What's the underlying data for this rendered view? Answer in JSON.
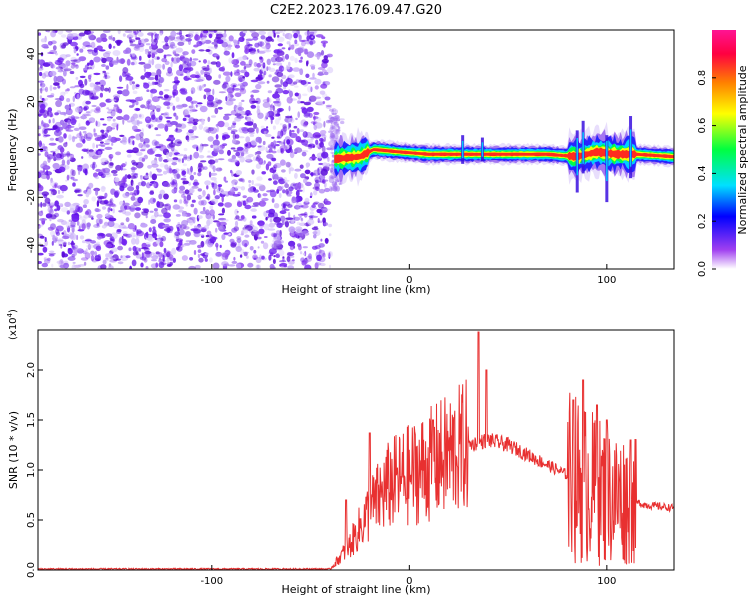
{
  "title": "C2E2.2023.176.09.47.G20",
  "chart_data": [
    {
      "type": "heatmap",
      "xlabel": "Height of straight line (km)",
      "ylabel": "Frequency (Hz)",
      "xlim": [
        -188,
        134
      ],
      "ylim": [
        -50,
        50
      ],
      "xticks": [
        -100,
        0,
        100
      ],
      "yticks": [
        -40,
        -20,
        0,
        20,
        40
      ],
      "grid": false,
      "noise_region_x": [
        -188,
        -40
      ],
      "signal_track": [
        {
          "x": -38,
          "y": -4
        },
        {
          "x": -25,
          "y": -3
        },
        {
          "x": -18,
          "y": 0
        },
        {
          "x": -5,
          "y": -1
        },
        {
          "x": 10,
          "y": -2
        },
        {
          "x": 30,
          "y": -2
        },
        {
          "x": 50,
          "y": -2
        },
        {
          "x": 70,
          "y": -2
        },
        {
          "x": 85,
          "y": -3
        },
        {
          "x": 95,
          "y": -1
        },
        {
          "x": 105,
          "y": -2
        },
        {
          "x": 115,
          "y": -2
        },
        {
          "x": 134,
          "y": -3
        }
      ],
      "colorbar": {
        "label": "Normalized spectral amplitude",
        "range": [
          0,
          1
        ],
        "ticks": [
          "0.0",
          "0.2",
          "0.4",
          "0.6",
          "0.8"
        ],
        "colors": [
          "#ffffff",
          "#a040f0",
          "#0000ff",
          "#00e0ff",
          "#00ff40",
          "#ffff00",
          "#ff8000",
          "#ff0040",
          "#ff1493"
        ]
      }
    },
    {
      "type": "line",
      "xlabel": "Height of straight line (km)",
      "ylabel": "SNR (10 * v/v)",
      "scale_label": "(x10",
      "scale_exp": "4",
      "scale_close": ")",
      "xlim": [
        -188,
        134
      ],
      "ylim": [
        0,
        24000
      ],
      "xticks": [
        -100,
        0,
        100
      ],
      "yticks": [
        "0.0",
        "0.5",
        "1.0",
        "1.5",
        "2.0"
      ],
      "ytick_values": [
        0,
        5000,
        10000,
        15000,
        20000
      ],
      "color": "#e83030",
      "grid": false,
      "envelope": [
        {
          "x": -188,
          "y": 100
        },
        {
          "x": -40,
          "y": 100
        },
        {
          "x": -30,
          "y": 2500
        },
        {
          "x": -20,
          "y": 6000
        },
        {
          "x": -10,
          "y": 8500
        },
        {
          "x": 0,
          "y": 9500
        },
        {
          "x": 10,
          "y": 10500
        },
        {
          "x": 20,
          "y": 11500
        },
        {
          "x": 30,
          "y": 12500
        },
        {
          "x": 40,
          "y": 13000
        },
        {
          "x": 50,
          "y": 12500
        },
        {
          "x": 60,
          "y": 11500
        },
        {
          "x": 70,
          "y": 10500
        },
        {
          "x": 80,
          "y": 9500
        },
        {
          "x": 90,
          "y": 8500
        },
        {
          "x": 100,
          "y": 7500
        },
        {
          "x": 110,
          "y": 7000
        },
        {
          "x": 120,
          "y": 6500
        },
        {
          "x": 134,
          "y": 6200
        }
      ],
      "peaks": [
        {
          "x": -32,
          "y": 7000
        },
        {
          "x": -20,
          "y": 13700
        },
        {
          "x": 12,
          "y": 15000
        },
        {
          "x": 35,
          "y": 23800
        },
        {
          "x": 39,
          "y": 20000
        },
        {
          "x": 83,
          "y": 17000
        },
        {
          "x": 88,
          "y": 19000
        },
        {
          "x": 95,
          "y": 16500
        },
        {
          "x": 100,
          "y": 15000
        },
        {
          "x": 112,
          "y": 13000
        }
      ]
    }
  ]
}
